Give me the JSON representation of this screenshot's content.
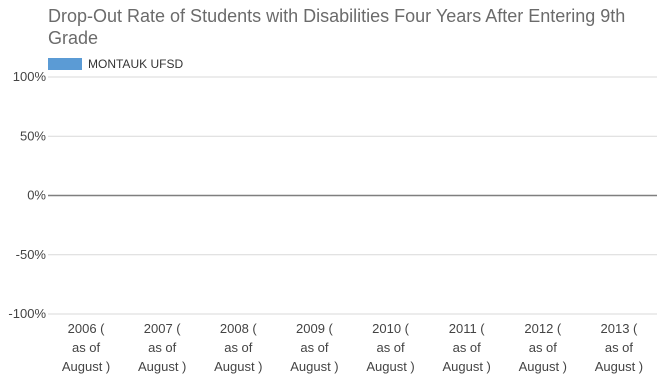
{
  "chart_data": {
    "type": "bar",
    "title": "Drop-Out Rate of Students with Disabilities Four Years After Entering 9th Grade",
    "xlabel": "",
    "ylabel": "",
    "categories": [
      [
        "2006 (",
        "as of",
        "August )"
      ],
      [
        "2007 (",
        "as of",
        "August )"
      ],
      [
        "2008 (",
        "as of",
        "August )"
      ],
      [
        "2009 (",
        "as of",
        "August )"
      ],
      [
        "2010 (",
        "as of",
        "August )"
      ],
      [
        "2011 (",
        "as of",
        "August )"
      ],
      [
        "2012 (",
        "as of",
        "August )"
      ],
      [
        "2013 (",
        "as of",
        "August )"
      ]
    ],
    "series": [
      {
        "name": "MONTAUK UFSD",
        "color": "#5b9bd5",
        "values": [
          null,
          null,
          null,
          null,
          null,
          null,
          null,
          null
        ]
      }
    ],
    "ylim": [
      -100,
      100
    ],
    "yticks": [
      100,
      50,
      0,
      -50,
      -100
    ],
    "ytick_labels": [
      "100%",
      "50%",
      "0%",
      "-50%",
      "-100%"
    ],
    "grid": true,
    "legend_position": "top-left"
  }
}
